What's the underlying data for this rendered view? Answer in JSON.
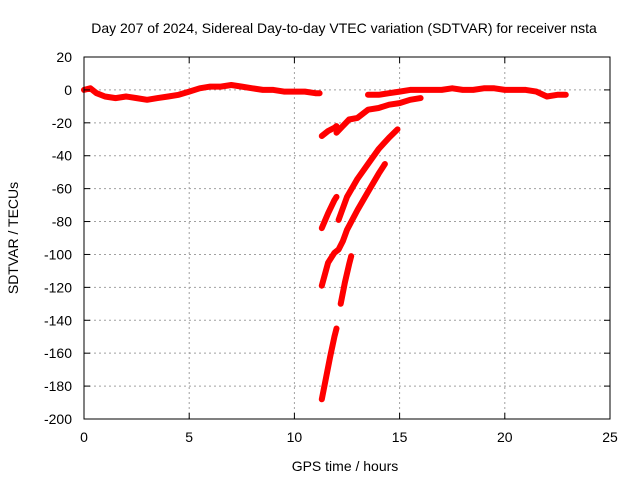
{
  "chart_data": {
    "type": "line",
    "title": "Day 207 of 2024, Sidereal Day-to-day VTEC variation (SDTVAR) for receiver nsta",
    "xlabel": "GPS time / hours",
    "ylabel": "SDTVAR / TECUs",
    "xlim": [
      0,
      25
    ],
    "ylim": [
      -200,
      20
    ],
    "xticks": [
      0,
      5,
      10,
      15,
      20,
      25
    ],
    "yticks": [
      20,
      0,
      -20,
      -40,
      -60,
      -80,
      -100,
      -120,
      -140,
      -160,
      -180,
      -200
    ],
    "grid": true,
    "legend": "none",
    "series_color": "#ff0000",
    "series": [
      {
        "x": [
          0,
          0.3,
          0.6,
          1.0,
          1.5,
          2.0,
          2.5,
          3.0,
          3.5,
          4.0,
          4.5,
          5.0,
          5.5,
          6.0,
          6.5,
          7.0,
          7.5,
          8.0,
          8.5,
          9.0,
          9.5,
          10.0,
          10.5,
          11.0,
          11.2
        ],
        "y": [
          0,
          1,
          -2,
          -4,
          -5,
          -4,
          -5,
          -6,
          -5,
          -4,
          -3,
          -1,
          1,
          2,
          2,
          3,
          2,
          1,
          0,
          0,
          -1,
          -1,
          -1,
          -2,
          -2
        ]
      },
      {
        "x": [
          13.5,
          14.0,
          14.5,
          15.0,
          15.5,
          16.0,
          16.5,
          17.0,
          17.5,
          18.0,
          18.5,
          19.0,
          19.5,
          20.0,
          20.5,
          21.0,
          21.5,
          22.0,
          22.5,
          22.9
        ],
        "y": [
          -3,
          -3,
          -2,
          -1,
          0,
          0,
          0,
          0,
          1,
          0,
          0,
          1,
          1,
          0,
          0,
          0,
          -1,
          -4,
          -3,
          -3
        ]
      },
      {
        "x": [
          11.3,
          11.6,
          11.9,
          12.0
        ],
        "y": [
          -28,
          -25,
          -23,
          -22
        ]
      },
      {
        "x": [
          12.0,
          12.3,
          12.6,
          13.0,
          13.5,
          14.0,
          14.5,
          15.0,
          15.5,
          16.0
        ],
        "y": [
          -26,
          -22,
          -18,
          -17,
          -12,
          -11,
          -9,
          -8,
          -6,
          -5
        ]
      },
      {
        "x": [
          11.3,
          11.6,
          11.9,
          12.0
        ],
        "y": [
          -84,
          -75,
          -67,
          -65
        ]
      },
      {
        "x": [
          12.1,
          12.5,
          13.0,
          13.5,
          14.0,
          14.5,
          14.9
        ],
        "y": [
          -79,
          -65,
          -54,
          -45,
          -36,
          -29,
          -24
        ]
      },
      {
        "x": [
          11.3,
          11.6,
          11.9,
          12.1,
          12.3,
          12.5,
          13.0,
          13.5,
          14.0,
          14.3
        ],
        "y": [
          -119,
          -105,
          -99,
          -97,
          -92,
          -85,
          -73,
          -62,
          -51,
          -45
        ]
      },
      {
        "x": [
          12.2,
          12.4,
          12.6,
          12.7
        ],
        "y": [
          -130,
          -117,
          -106,
          -101
        ]
      },
      {
        "x": [
          11.3,
          11.5,
          11.7,
          11.9,
          12.0
        ],
        "y": [
          -188,
          -175,
          -162,
          -150,
          -145
        ]
      }
    ]
  }
}
